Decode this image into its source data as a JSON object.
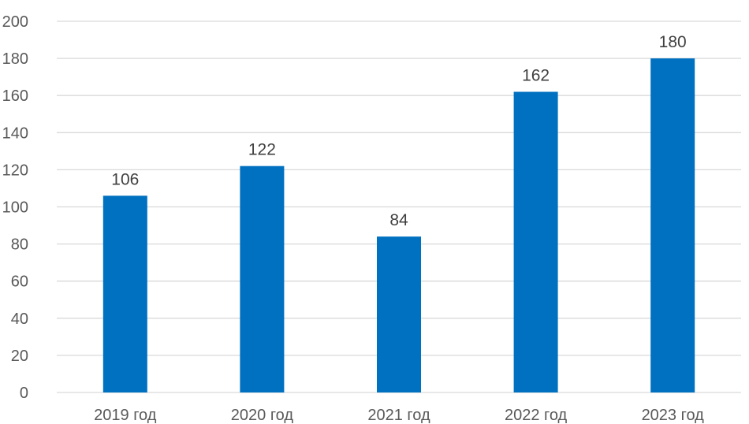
{
  "chart_data": {
    "type": "bar",
    "categories": [
      "2019 год",
      "2020 год",
      "2021 год",
      "2022 год",
      "2023 год"
    ],
    "series": [
      {
        "values": [
          106,
          122,
          84,
          162,
          180
        ],
        "color": "#0070C0"
      }
    ],
    "data_labels": [
      "106",
      "122",
      "84",
      "162",
      "180"
    ],
    "yticks": [
      "0",
      "20",
      "40",
      "60",
      "80",
      "100",
      "120",
      "140",
      "160",
      "180",
      "200"
    ],
    "ylim": [
      0,
      200
    ],
    "grid": true,
    "legend": "none",
    "title": "",
    "xlabel": "",
    "ylabel": ""
  }
}
